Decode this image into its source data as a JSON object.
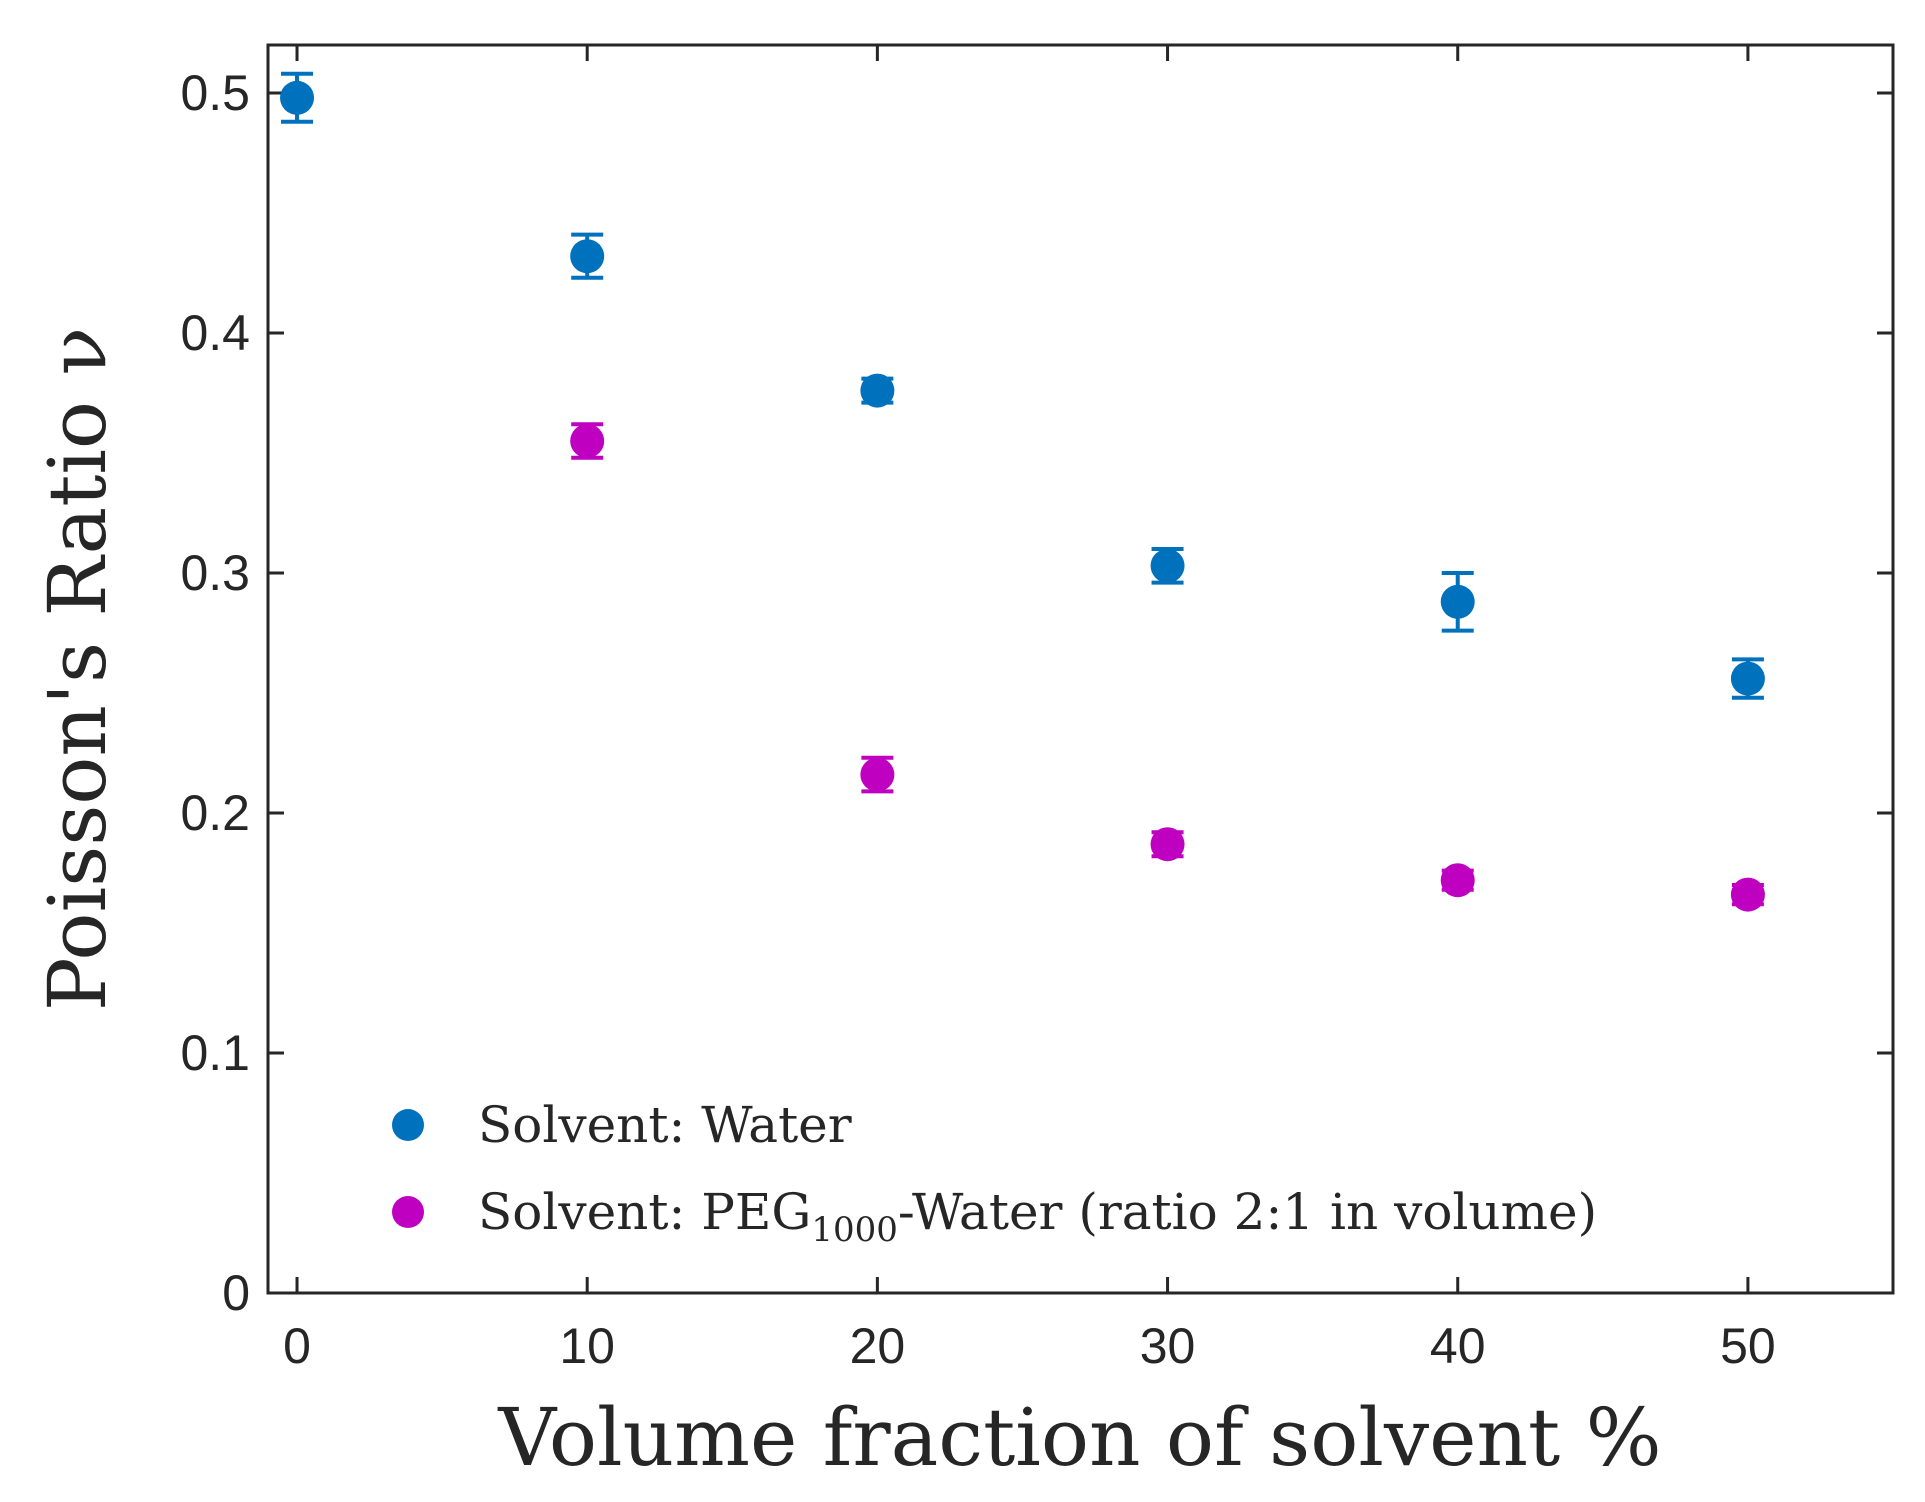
{
  "chart_data": {
    "type": "scatter",
    "xlabel": "Volume fraction of solvent %",
    "ylabel": "Poisson's Ratio ν",
    "xlim": [
      -1,
      55
    ],
    "ylim": [
      0,
      0.52
    ],
    "xticks": [
      0,
      10,
      20,
      30,
      40,
      50
    ],
    "yticks": [
      0,
      0.1,
      0.2,
      0.3,
      0.4,
      0.5
    ],
    "xtick_labels": [
      "0",
      "10",
      "20",
      "30",
      "40",
      "50"
    ],
    "ytick_labels": [
      "0",
      "0.1",
      "0.2",
      "0.3",
      "0.4",
      "0.5"
    ],
    "grid": false,
    "legend_position": "bottom-left",
    "series": [
      {
        "name": "Solvent: Water",
        "legend_prefix": "Solvent: Water",
        "legend_subscript": "",
        "legend_suffix": "",
        "color": "#0072BD",
        "x": [
          0,
          10,
          20,
          30,
          40,
          50
        ],
        "y": [
          0.498,
          0.432,
          0.376,
          0.303,
          0.288,
          0.256
        ],
        "err": [
          0.01,
          0.009,
          0.005,
          0.007,
          0.012,
          0.008
        ]
      },
      {
        "name": "Solvent: PEG1000-Water (ratio 2:1 in volume)",
        "legend_prefix": "Solvent: PEG",
        "legend_subscript": "1000",
        "legend_suffix": "-Water (ratio 2:1 in volume)",
        "color": "#C000C0",
        "x": [
          10,
          20,
          30,
          40,
          50
        ],
        "y": [
          0.355,
          0.216,
          0.187,
          0.172,
          0.166
        ],
        "err": [
          0.007,
          0.007,
          0.005,
          0.004,
          0.004
        ]
      }
    ]
  }
}
